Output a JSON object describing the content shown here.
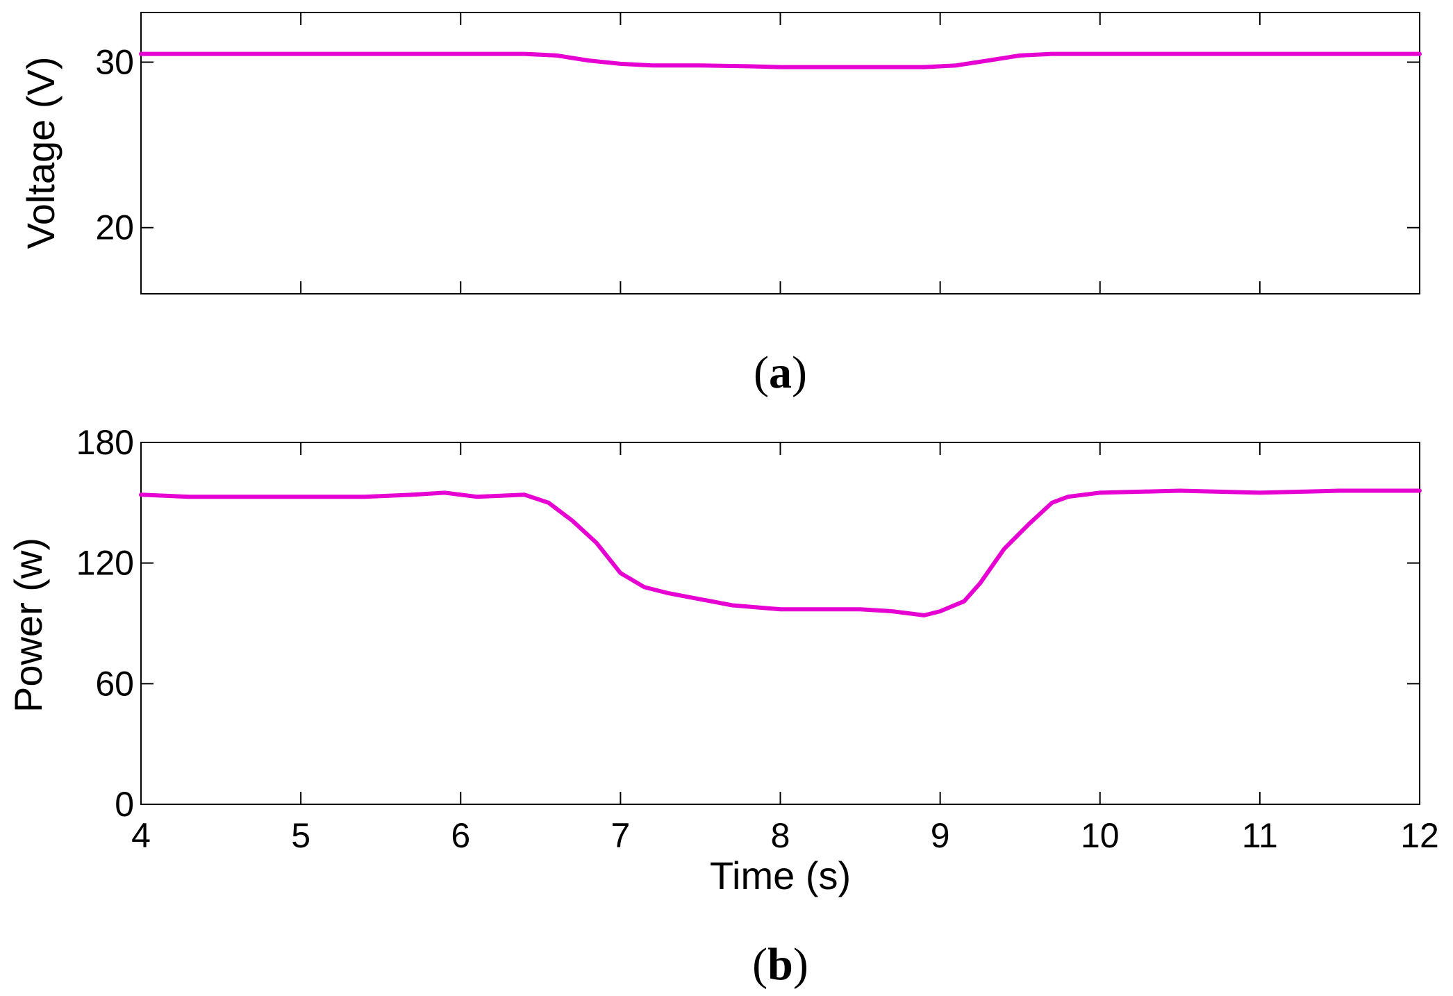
{
  "chart_data": [
    {
      "type": "line",
      "caption": "(a)",
      "caption_letter": "a",
      "xlabel": "",
      "ylabel": "Voltage (V)",
      "xlim": [
        4,
        12
      ],
      "ylim": [
        16,
        33
      ],
      "x_ticks": [
        4,
        5,
        6,
        7,
        8,
        9,
        10,
        11,
        12
      ],
      "y_ticks": [
        20,
        30
      ],
      "show_x_tick_labels": false,
      "grid": false,
      "series": [
        {
          "color": "#e600d2",
          "x": [
            4.0,
            4.5,
            5.0,
            5.5,
            6.0,
            6.4,
            6.6,
            6.8,
            7.0,
            7.2,
            7.5,
            7.8,
            8.0,
            8.3,
            8.6,
            8.9,
            9.1,
            9.3,
            9.5,
            9.7,
            10.0,
            10.5,
            11.0,
            11.5,
            12.0
          ],
          "y": [
            30.5,
            30.5,
            30.5,
            30.5,
            30.5,
            30.5,
            30.4,
            30.1,
            29.9,
            29.8,
            29.8,
            29.75,
            29.7,
            29.7,
            29.7,
            29.7,
            29.8,
            30.1,
            30.4,
            30.5,
            30.5,
            30.5,
            30.5,
            30.5,
            30.5
          ]
        }
      ]
    },
    {
      "type": "line",
      "caption": "(b)",
      "caption_letter": "b",
      "xlabel": "Time (s)",
      "ylabel": "Power (w)",
      "xlim": [
        4,
        12
      ],
      "ylim": [
        0,
        180
      ],
      "x_ticks": [
        4,
        5,
        6,
        7,
        8,
        9,
        10,
        11,
        12
      ],
      "y_ticks": [
        0,
        60,
        120,
        180
      ],
      "show_x_tick_labels": true,
      "grid": false,
      "series": [
        {
          "color": "#e600d2",
          "x": [
            4.0,
            4.3,
            4.6,
            5.0,
            5.4,
            5.7,
            5.9,
            6.1,
            6.4,
            6.55,
            6.7,
            6.85,
            7.0,
            7.15,
            7.3,
            7.5,
            7.7,
            8.0,
            8.3,
            8.5,
            8.7,
            8.9,
            9.0,
            9.15,
            9.25,
            9.4,
            9.55,
            9.7,
            9.8,
            10.0,
            10.5,
            11.0,
            11.5,
            12.0
          ],
          "y": [
            154,
            153,
            153,
            153,
            153,
            154,
            155,
            153,
            154,
            150,
            141,
            130,
            115,
            108,
            105,
            102,
            99,
            97,
            97,
            97,
            96,
            94,
            96,
            101,
            110,
            127,
            139,
            150,
            153,
            155,
            156,
            155,
            156,
            156
          ]
        }
      ]
    }
  ]
}
